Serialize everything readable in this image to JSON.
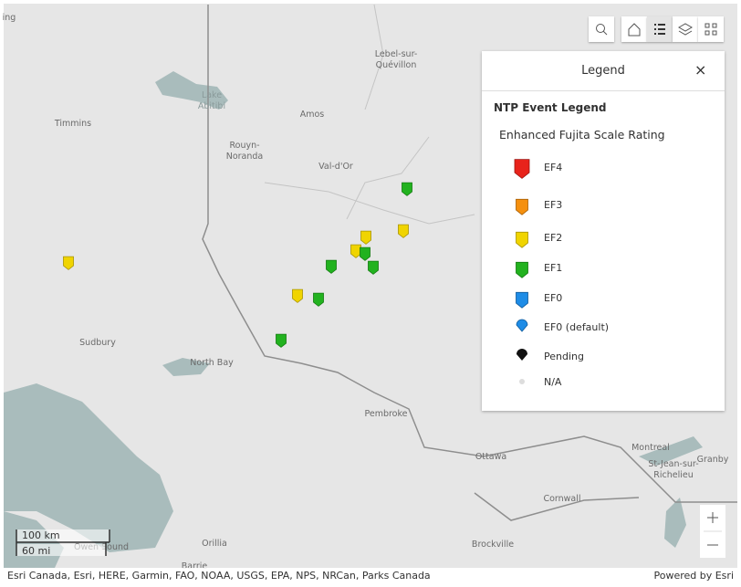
{
  "map": {
    "labels": [
      "ing",
      "Lebel-sur-",
      "Quévillon",
      "Lake",
      "Abitibi",
      "Timmins",
      "Amos",
      "Rouyn-",
      "Noranda",
      "Val-d'Or",
      "Sudbury",
      "North Bay",
      "Pembroke",
      "Ottawa",
      "Montreal",
      "St-Jean-sur-",
      "Richelieu",
      "Granby",
      "Cornwall",
      "Brockville",
      "Orillia",
      "Owen Sound",
      "Barrie"
    ],
    "scale": [
      "100 km",
      "60 mi"
    ],
    "attribution": "Esri Canada, Esri, HERE, Garmin, FAO, NOAA, USGS, EPA, NPS, NRCan, Parks Canada",
    "powered_by": "Powered by Esri"
  },
  "legend": {
    "title": "Legend",
    "layer": "NTP Event Legend",
    "field": "Enhanced Fujita Scale Rating",
    "items": [
      "EF4",
      "EF3",
      "EF2",
      "EF1",
      "EF0",
      "EF0 (default)",
      "Pending",
      "N/A"
    ]
  }
}
